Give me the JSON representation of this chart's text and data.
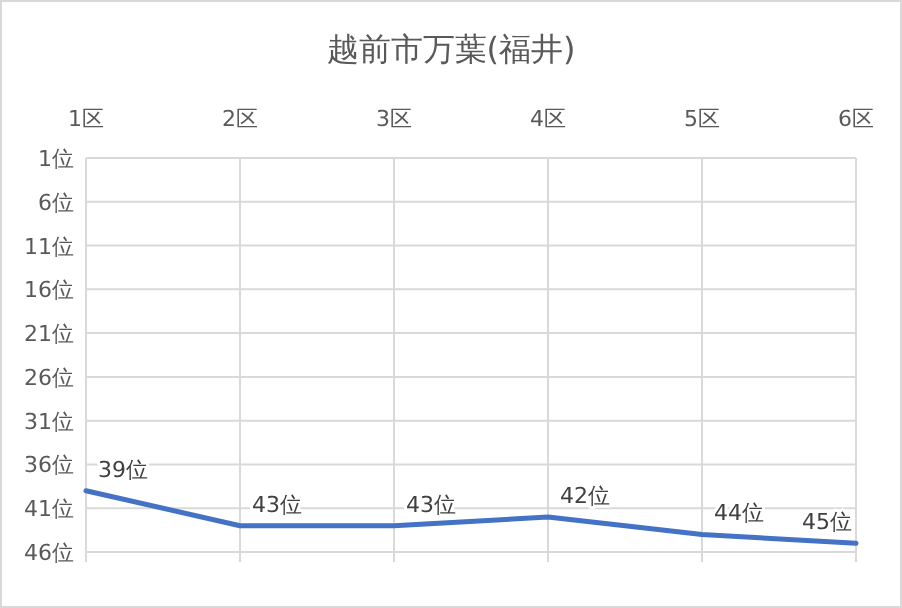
{
  "chart_data": {
    "type": "line",
    "title": "越前市万葉(福井)",
    "categories": [
      "1区",
      "2区",
      "3区",
      "4区",
      "5区",
      "6区"
    ],
    "series": [
      {
        "color": "#4472c4",
        "values": [
          39,
          43,
          43,
          42,
          44,
          45
        ],
        "value_labels": [
          "39位",
          "43位",
          "43位",
          "42位",
          "44位",
          "45位"
        ]
      }
    ],
    "ylim": [
      46,
      1
    ],
    "yticks": [
      {
        "value": 1,
        "label": "1位"
      },
      {
        "value": 6,
        "label": "6位"
      },
      {
        "value": 11,
        "label": "11位"
      },
      {
        "value": 16,
        "label": "16位"
      },
      {
        "value": 21,
        "label": "21位"
      },
      {
        "value": 26,
        "label": "26位"
      },
      {
        "value": 31,
        "label": "31位"
      },
      {
        "value": 36,
        "label": "36位"
      },
      {
        "value": 41,
        "label": "41位"
      },
      {
        "value": 46,
        "label": "46位"
      }
    ],
    "grid": true,
    "marker": "none",
    "line_style": "solid"
  }
}
